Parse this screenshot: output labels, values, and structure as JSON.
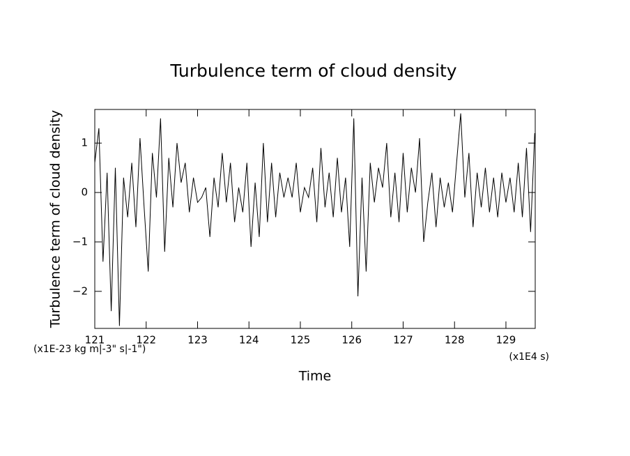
{
  "chart_data": {
    "type": "line",
    "title": "Turbulence term of cloud density",
    "x_label": "Time",
    "y_label": "Turbulence term of cloud density",
    "x_unit": "(x1E4 s)",
    "y_unit": "(x1E-23 kg m|-3\" s|-1\")",
    "xlim": [
      121,
      129.57
    ],
    "ylim": [
      -2.75,
      1.68
    ],
    "xticks": [
      121,
      122,
      123,
      124,
      125,
      126,
      127,
      128,
      129
    ],
    "yticks": [
      -2,
      -1,
      0,
      1
    ],
    "series": [
      {
        "name": "Turbulence term",
        "color": "#000000",
        "x": [
          121.0,
          121.08,
          121.16,
          121.24,
          121.32,
          121.4,
          121.48,
          121.56,
          121.64,
          121.72,
          121.8,
          121.88,
          121.96,
          122.04,
          122.12,
          122.2,
          122.28,
          122.36,
          122.44,
          122.52,
          122.6,
          122.68,
          122.76,
          122.84,
          122.92,
          123.0,
          123.08,
          123.16,
          123.24,
          123.32,
          123.4,
          123.48,
          123.56,
          123.64,
          123.72,
          123.8,
          123.88,
          123.96,
          124.04,
          124.12,
          124.2,
          124.28,
          124.36,
          124.44,
          124.52,
          124.6,
          124.68,
          124.76,
          124.84,
          124.92,
          125.0,
          125.08,
          125.16,
          125.24,
          125.32,
          125.4,
          125.48,
          125.56,
          125.64,
          125.72,
          125.8,
          125.88,
          125.96,
          126.04,
          126.12,
          126.2,
          126.28,
          126.36,
          126.44,
          126.52,
          126.6,
          126.68,
          126.76,
          126.84,
          126.92,
          127.0,
          127.08,
          127.16,
          127.24,
          127.32,
          127.4,
          127.48,
          127.56,
          127.64,
          127.72,
          127.8,
          127.88,
          127.96,
          128.04,
          128.12,
          128.2,
          128.28,
          128.36,
          128.44,
          128.52,
          128.6,
          128.68,
          128.76,
          128.84,
          128.92,
          129.0,
          129.08,
          129.16,
          129.24,
          129.32,
          129.4,
          129.48,
          129.56
        ],
        "values": [
          0.6,
          1.3,
          -1.4,
          0.4,
          -2.4,
          0.5,
          -2.7,
          0.3,
          -0.5,
          0.6,
          -0.7,
          1.1,
          -0.3,
          -1.6,
          0.8,
          -0.1,
          1.5,
          -1.2,
          0.7,
          -0.3,
          1.0,
          0.2,
          0.6,
          -0.4,
          0.3,
          -0.2,
          -0.1,
          0.1,
          -0.9,
          0.3,
          -0.3,
          0.8,
          -0.2,
          0.6,
          -0.6,
          0.1,
          -0.4,
          0.6,
          -1.1,
          0.2,
          -0.9,
          1.0,
          -0.6,
          0.6,
          -0.5,
          0.4,
          -0.1,
          0.3,
          -0.1,
          0.6,
          -0.4,
          0.1,
          -0.1,
          0.5,
          -0.6,
          0.9,
          -0.3,
          0.4,
          -0.5,
          0.7,
          -0.4,
          0.3,
          -1.1,
          1.5,
          -2.1,
          0.3,
          -1.6,
          0.6,
          -0.2,
          0.5,
          0.1,
          1.0,
          -0.5,
          0.4,
          -0.6,
          0.8,
          -0.4,
          0.5,
          0.0,
          1.1,
          -1.0,
          -0.2,
          0.4,
          -0.7,
          0.3,
          -0.3,
          0.2,
          -0.4,
          0.6,
          1.6,
          -0.1,
          0.8,
          -0.7,
          0.4,
          -0.3,
          0.5,
          -0.4,
          0.3,
          -0.5,
          0.4,
          -0.2,
          0.3,
          -0.4,
          0.6,
          -0.5,
          0.9,
          -0.8,
          1.2
        ]
      }
    ]
  }
}
